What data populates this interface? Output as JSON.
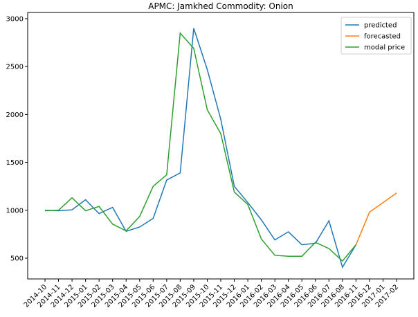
{
  "chart_data": {
    "type": "line",
    "title": "APMC: Jamkhed  Commodity: Onion",
    "categories": [
      "2014-10",
      "2014-11",
      "2014-12",
      "2015-01",
      "2015-02",
      "2015-03",
      "2015-04",
      "2015-05",
      "2015-06",
      "2015-07",
      "2015-08",
      "2015-09",
      "2015-10",
      "2015-11",
      "2015-12",
      "2016-01",
      "2016-02",
      "2016-03",
      "2016-04",
      "2016-05",
      "2016-06",
      "2016-07",
      "2016-08",
      "2016-11",
      "2016-12",
      "2017-01",
      "2017-02"
    ],
    "series": [
      {
        "name": "predicted",
        "color": "#1f77b4",
        "values": [
          1000,
          995,
          1005,
          1110,
          965,
          1030,
          780,
          825,
          915,
          1315,
          1390,
          2900,
          2470,
          1950,
          1250,
          1080,
          900,
          690,
          775,
          640,
          655,
          890,
          405,
          640,
          null,
          null,
          null
        ]
      },
      {
        "name": "forecasted",
        "color": "#ff7f0e",
        "values": [
          null,
          null,
          null,
          null,
          null,
          null,
          null,
          null,
          null,
          null,
          null,
          null,
          null,
          null,
          null,
          null,
          null,
          null,
          null,
          null,
          null,
          null,
          null,
          640,
          980,
          1080,
          1180
        ]
      },
      {
        "name": "modal price",
        "color": "#2ca02c",
        "values": [
          995,
          1000,
          1130,
          995,
          1040,
          855,
          785,
          935,
          1250,
          1370,
          2850,
          2690,
          2050,
          1800,
          1190,
          1060,
          700,
          530,
          520,
          520,
          665,
          600,
          470,
          640,
          null,
          null,
          null
        ]
      }
    ],
    "ylim": [
      283,
      3065
    ],
    "yticks": [
      500,
      1000,
      1500,
      2000,
      2500,
      3000
    ],
    "legend": "upper right"
  }
}
